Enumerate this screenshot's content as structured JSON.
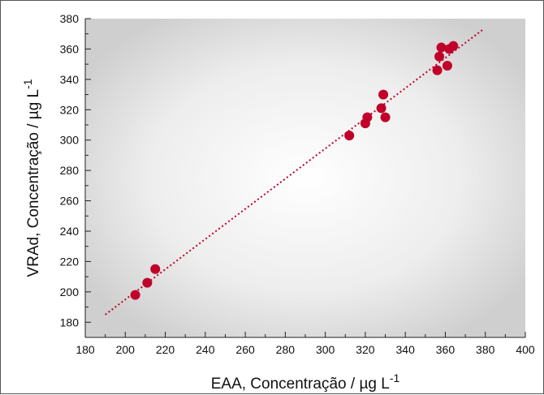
{
  "chart_data": {
    "type": "scatter",
    "title": "",
    "xlabel": "EAA, Concentração / µg L",
    "xlabel_superscript": "-1",
    "ylabel": "VRAd, Concentração / µg L",
    "ylabel_superscript": "-1",
    "xlim": [
      180,
      400
    ],
    "ylim": [
      170,
      380
    ],
    "x_ticks": [
      180,
      200,
      220,
      240,
      260,
      280,
      300,
      320,
      340,
      360,
      380,
      400
    ],
    "y_ticks": [
      180,
      200,
      220,
      240,
      260,
      280,
      300,
      320,
      340,
      360,
      380
    ],
    "grid": false,
    "legend": "none",
    "background": "light gray radial gradient",
    "series": [
      {
        "type": "scatter",
        "color": "#c0002a",
        "points": [
          {
            "x": 205,
            "y": 198
          },
          {
            "x": 211,
            "y": 206
          },
          {
            "x": 215,
            "y": 215
          },
          {
            "x": 312,
            "y": 303
          },
          {
            "x": 320,
            "y": 311
          },
          {
            "x": 321,
            "y": 315
          },
          {
            "x": 328,
            "y": 321
          },
          {
            "x": 329,
            "y": 330
          },
          {
            "x": 330,
            "y": 315
          },
          {
            "x": 356,
            "y": 346
          },
          {
            "x": 357,
            "y": 355
          },
          {
            "x": 358,
            "y": 361
          },
          {
            "x": 361,
            "y": 349
          },
          {
            "x": 362,
            "y": 360
          },
          {
            "x": 364,
            "y": 362
          }
        ]
      },
      {
        "type": "line",
        "style": "dotted",
        "color": "#c0002a",
        "points": [
          {
            "x": 190,
            "y": 185
          },
          {
            "x": 379,
            "y": 373
          }
        ]
      }
    ]
  }
}
